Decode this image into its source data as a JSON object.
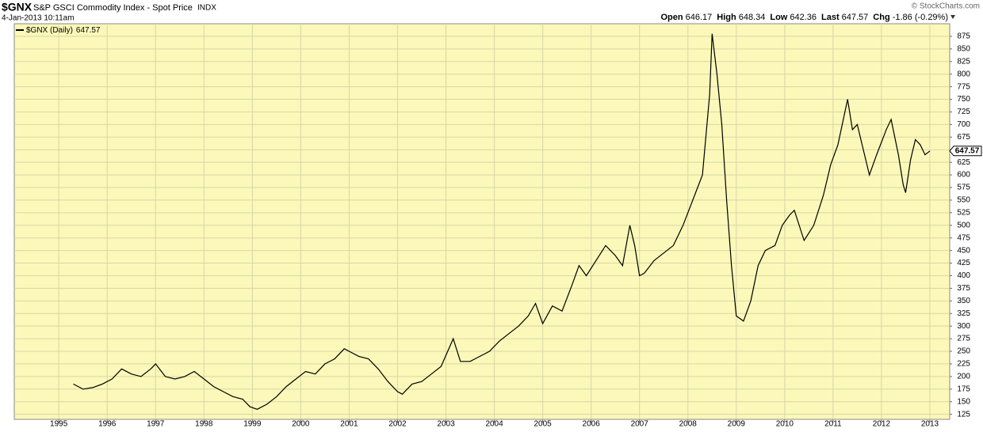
{
  "chart_data": {
    "type": "line",
    "symbol": "$GNX",
    "title": "S&P GSCI Commodity Index - Spot Price",
    "exchange": "INDX",
    "date": "4-Jan-2013 10:11am",
    "source": "© StockCharts.com",
    "quote": [
      {
        "name": "Open",
        "value": 646.17
      },
      {
        "name": "High",
        "value": 648.34
      },
      {
        "name": "Low",
        "value": 642.36
      },
      {
        "name": "Last",
        "value": 647.57
      },
      {
        "name": "Chg",
        "value": -1.86,
        "label": "-1.86 (-0.29%)"
      }
    ],
    "series": [
      {
        "name": "$GNX (Daily)",
        "color": "#000000",
        "x": [
          1995.3,
          1995.5,
          1995.7,
          1995.9,
          1996.1,
          1996.3,
          1996.5,
          1996.7,
          1996.9,
          1997.0,
          1997.2,
          1997.4,
          1997.6,
          1997.8,
          1998.0,
          1998.2,
          1998.4,
          1998.6,
          1998.8,
          1998.95,
          1999.1,
          1999.3,
          1999.5,
          1999.7,
          1999.9,
          2000.1,
          2000.3,
          2000.5,
          2000.7,
          2000.9,
          2001.0,
          2001.2,
          2001.4,
          2001.6,
          2001.8,
          2002.0,
          2002.1,
          2002.3,
          2002.5,
          2002.7,
          2002.9,
          2003.15,
          2003.3,
          2003.5,
          2003.7,
          2003.9,
          2004.1,
          2004.3,
          2004.5,
          2004.7,
          2004.85,
          2005.0,
          2005.2,
          2005.4,
          2005.6,
          2005.75,
          2005.9,
          2006.1,
          2006.3,
          2006.5,
          2006.65,
          2006.8,
          2006.9,
          2007.0,
          2007.1,
          2007.3,
          2007.5,
          2007.7,
          2007.9,
          2008.1,
          2008.3,
          2008.45,
          2008.5,
          2008.6,
          2008.7,
          2008.8,
          2008.9,
          2009.0,
          2009.15,
          2009.3,
          2009.45,
          2009.6,
          2009.8,
          2009.95,
          2010.1,
          2010.2,
          2010.4,
          2010.6,
          2010.8,
          2010.95,
          2011.1,
          2011.3,
          2011.4,
          2011.5,
          2011.6,
          2011.75,
          2011.9,
          2012.1,
          2012.2,
          2012.35,
          2012.45,
          2012.5,
          2012.6,
          2012.7,
          2012.8,
          2012.9,
          2013.0
        ],
        "values": [
          185,
          175,
          178,
          185,
          195,
          215,
          205,
          200,
          215,
          225,
          200,
          195,
          200,
          210,
          195,
          180,
          170,
          160,
          155,
          140,
          135,
          145,
          160,
          180,
          195,
          210,
          205,
          225,
          235,
          255,
          250,
          240,
          235,
          215,
          190,
          170,
          165,
          185,
          190,
          205,
          220,
          275,
          230,
          230,
          240,
          250,
          270,
          285,
          300,
          320,
          345,
          305,
          340,
          330,
          380,
          420,
          400,
          430,
          460,
          440,
          420,
          500,
          460,
          400,
          405,
          430,
          445,
          460,
          500,
          550,
          600,
          760,
          880,
          800,
          700,
          550,
          420,
          320,
          310,
          350,
          420,
          450,
          460,
          500,
          520,
          530,
          470,
          500,
          560,
          620,
          660,
          750,
          690,
          700,
          660,
          600,
          640,
          690,
          710,
          640,
          580,
          565,
          630,
          670,
          660,
          640,
          647.57
        ]
      }
    ],
    "xlim": [
      1994.08,
      2013.41
    ],
    "xticks": [
      1995,
      1996,
      1997,
      1998,
      1999,
      2000,
      2001,
      2002,
      2003,
      2004,
      2005,
      2006,
      2007,
      2008,
      2009,
      2010,
      2011,
      2012,
      2013
    ],
    "ylim": [
      115,
      900
    ],
    "yticks": [
      125,
      150,
      175,
      200,
      225,
      250,
      275,
      300,
      325,
      350,
      375,
      400,
      425,
      450,
      475,
      500,
      525,
      550,
      575,
      600,
      625,
      650,
      675,
      700,
      725,
      750,
      775,
      800,
      825,
      850,
      875
    ],
    "grid": true
  }
}
